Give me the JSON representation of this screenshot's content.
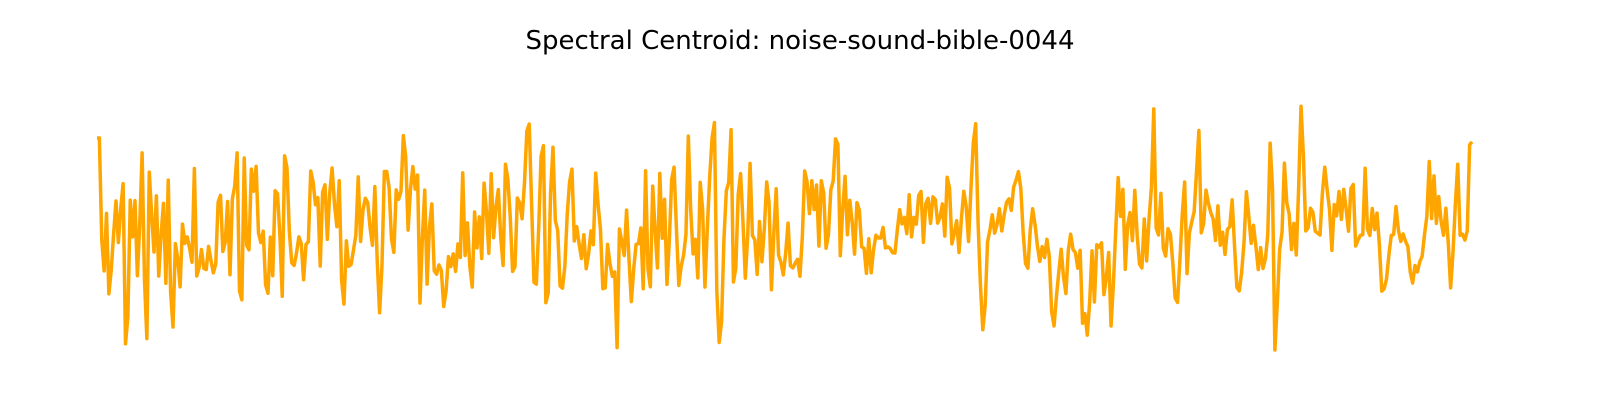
{
  "chart_data": {
    "type": "line",
    "title": "Spectral Centroid: noise-sound-bible-0044",
    "xlabel": "",
    "ylabel": "",
    "axes_visible": false,
    "grid": false,
    "legend": "none",
    "colors": {
      "line": "#FFA500",
      "background": "#ffffff"
    },
    "series": [
      {
        "values": [
          0.785,
          0.785,
          0.409,
          0.293,
          0.506,
          0.208,
          0.297,
          0.43,
          0.552,
          0.398,
          0.525,
          0.616,
          0.023,
          0.122,
          0.555,
          0.419,
          0.553,
          0.275,
          0.465,
          0.73,
          0.257,
          0.042,
          0.659,
          0.504,
          0.363,
          0.571,
          0.274,
          0.429,
          0.543,
          0.247,
          0.629,
          0.213,
          0.085,
          0.394,
          0.338,
          0.234,
          0.466,
          0.395,
          0.419,
          0.376,
          0.325,
          0.672,
          0.274,
          0.305,
          0.372,
          0.302,
          0.298,
          0.384,
          0.331,
          0.286,
          0.318,
          0.547,
          0.573,
          0.365,
          0.399,
          0.55,
          0.279,
          0.559,
          0.608,
          0.73,
          0.219,
          0.186,
          0.711,
          0.388,
          0.371,
          0.67,
          0.588,
          0.68,
          0.433,
          0.398,
          0.44,
          0.241,
          0.21,
          0.418,
          0.275,
          0.59,
          0.579,
          0.428,
          0.199,
          0.719,
          0.675,
          0.437,
          0.323,
          0.313,
          0.359,
          0.419,
          0.395,
          0.26,
          0.391,
          0.401,
          0.663,
          0.622,
          0.538,
          0.564,
          0.311,
          0.584,
          0.612,
          0.41,
          0.582,
          0.674,
          0.54,
          0.457,
          0.627,
          0.258,
          0.17,
          0.404,
          0.31,
          0.317,
          0.37,
          0.426,
          0.641,
          0.402,
          0.519,
          0.562,
          0.545,
          0.452,
          0.388,
          0.605,
          0.33,
          0.138,
          0.313,
          0.661,
          0.661,
          0.602,
          0.412,
          0.362,
          0.593,
          0.558,
          0.587,
          0.794,
          0.714,
          0.444,
          0.595,
          0.679,
          0.596,
          0.648,
          0.174,
          0.412,
          0.592,
          0.244,
          0.456,
          0.541,
          0.294,
          0.281,
          0.315,
          0.294,
          0.161,
          0.22,
          0.346,
          0.309,
          0.356,
          0.291,
          0.393,
          0.343,
          0.656,
          0.35,
          0.471,
          0.309,
          0.233,
          0.511,
          0.378,
          0.493,
          0.339,
          0.618,
          0.514,
          0.358,
          0.653,
          0.416,
          0.531,
          0.594,
          0.419,
          0.313,
          0.688,
          0.633,
          0.495,
          0.291,
          0.308,
          0.563,
          0.544,
          0.486,
          0.617,
          0.811,
          0.837,
          0.542,
          0.251,
          0.244,
          0.453,
          0.717,
          0.757,
          0.175,
          0.212,
          0.581,
          0.751,
          0.48,
          0.442,
          0.237,
          0.229,
          0.309,
          0.501,
          0.622,
          0.67,
          0.404,
          0.457,
          0.394,
          0.339,
          0.427,
          0.301,
          0.355,
          0.441,
          0.39,
          0.655,
          0.54,
          0.448,
          0.227,
          0.23,
          0.391,
          0.32,
          0.273,
          0.289,
          0.009,
          0.448,
          0.402,
          0.35,
          0.518,
          0.338,
          0.179,
          0.299,
          0.391,
          0.394,
          0.452,
          0.227,
          0.664,
          0.301,
          0.234,
          0.607,
          0.445,
          0.304,
          0.654,
          0.414,
          0.558,
          0.243,
          0.405,
          0.633,
          0.677,
          0.447,
          0.239,
          0.31,
          0.351,
          0.428,
          0.792,
          0.52,
          0.356,
          0.41,
          0.267,
          0.621,
          0.523,
          0.233,
          0.45,
          0.64,
          0.785,
          0.842,
          0.218,
          0.028,
          0.106,
          0.41,
          0.589,
          0.621,
          0.816,
          0.252,
          0.303,
          0.576,
          0.653,
          0.478,
          0.266,
          0.421,
          0.691,
          0.424,
          0.408,
          0.28,
          0.476,
          0.327,
          0.449,
          0.622,
          0.546,
          0.223,
          0.432,
          0.597,
          0.351,
          0.325,
          0.278,
          0.36,
          0.47,
          0.312,
          0.304,
          0.322,
          0.336,
          0.273,
          0.418,
          0.663,
          0.623,
          0.505,
          0.627,
          0.52,
          0.611,
          0.385,
          0.627,
          0.582,
          0.377,
          0.426,
          0.593,
          0.626,
          0.782,
          0.761,
          0.349,
          0.521,
          0.643,
          0.427,
          0.554,
          0.474,
          0.355,
          0.546,
          0.518,
          0.382,
          0.377,
          0.284,
          0.412,
          0.286,
          0.371,
          0.425,
          0.415,
          0.415,
          0.454,
          0.378,
          0.382,
          0.376,
          0.36,
          0.359,
          0.444,
          0.52,
          0.467,
          0.491,
          0.431,
          0.575,
          0.419,
          0.491,
          0.466,
          0.572,
          0.587,
          0.399,
          0.542,
          0.562,
          0.469,
          0.567,
          0.557,
          0.47,
          0.492,
          0.541,
          0.422,
          0.64,
          0.599,
          0.393,
          0.433,
          0.479,
          0.361,
          0.488,
          0.588,
          0.532,
          0.402,
          0.595,
          0.767,
          0.838,
          0.475,
          0.241,
          0.075,
          0.165,
          0.401,
          0.444,
          0.501,
          0.433,
          0.465,
          0.523,
          0.441,
          0.5,
          0.547,
          0.56,
          0.517,
          0.604,
          0.629,
          0.661,
          0.599,
          0.433,
          0.32,
          0.303,
          0.447,
          0.523,
          0.464,
          0.386,
          0.328,
          0.383,
          0.342,
          0.41,
          0.346,
          0.142,
          0.089,
          0.197,
          0.289,
          0.373,
          0.27,
          0.209,
          0.369,
          0.429,
          0.372,
          0.361,
          0.303,
          0.369,
          0.099,
          0.135,
          0.055,
          0.178,
          0.367,
          0.178,
          0.39,
          0.381,
          0.397,
          0.205,
          0.268,
          0.361,
          0.089,
          0.246,
          0.448,
          0.639,
          0.495,
          0.595,
          0.299,
          0.464,
          0.509,
          0.405,
          0.591,
          0.425,
          0.318,
          0.304,
          0.485,
          0.33,
          0.483,
          0.602,
          0.893,
          0.452,
          0.426,
          0.58,
          0.377,
          0.348,
          0.449,
          0.429,
          0.323,
          0.193,
          0.176,
          0.333,
          0.503,
          0.622,
          0.283,
          0.434,
          0.475,
          0.512,
          0.66,
          0.813,
          0.434,
          0.468,
          0.592,
          0.544,
          0.509,
          0.485,
          0.406,
          0.534,
          0.388,
          0.436,
          0.354,
          0.446,
          0.457,
          0.556,
          0.386,
          0.232,
          0.219,
          0.288,
          0.399,
          0.586,
          0.496,
          0.395,
          0.462,
          0.383,
          0.298,
          0.379,
          0.302,
          0.338,
          0.426,
          0.766,
          0.596,
          0.0,
          0.171,
          0.372,
          0.436,
          0.692,
          0.546,
          0.504,
          0.372,
          0.469,
          0.352,
          0.601,
          0.903,
          0.719,
          0.441,
          0.453,
          0.525,
          0.51,
          0.44,
          0.433,
          0.426,
          0.581,
          0.677,
          0.594,
          0.52,
          0.369,
          0.539,
          0.497,
          0.587,
          0.484,
          0.595,
          0.521,
          0.44,
          0.598,
          0.613,
          0.385,
          0.407,
          0.425,
          0.427,
          0.673,
          0.447,
          0.424,
          0.524,
          0.446,
          0.507,
          0.39,
          0.218,
          0.227,
          0.263,
          0.352,
          0.424,
          0.428,
          0.531,
          0.445,
          0.402,
          0.43,
          0.403,
          0.383,
          0.289,
          0.248,
          0.313,
          0.289,
          0.327,
          0.347,
          0.427,
          0.496,
          0.698,
          0.487,
          0.645,
          0.469,
          0.568,
          0.476,
          0.425,
          0.525,
          0.397,
          0.23,
          0.362,
          0.542,
          0.688,
          0.425,
          0.429,
          0.407,
          0.441,
          0.76,
          0.771
        ]
      }
    ]
  }
}
